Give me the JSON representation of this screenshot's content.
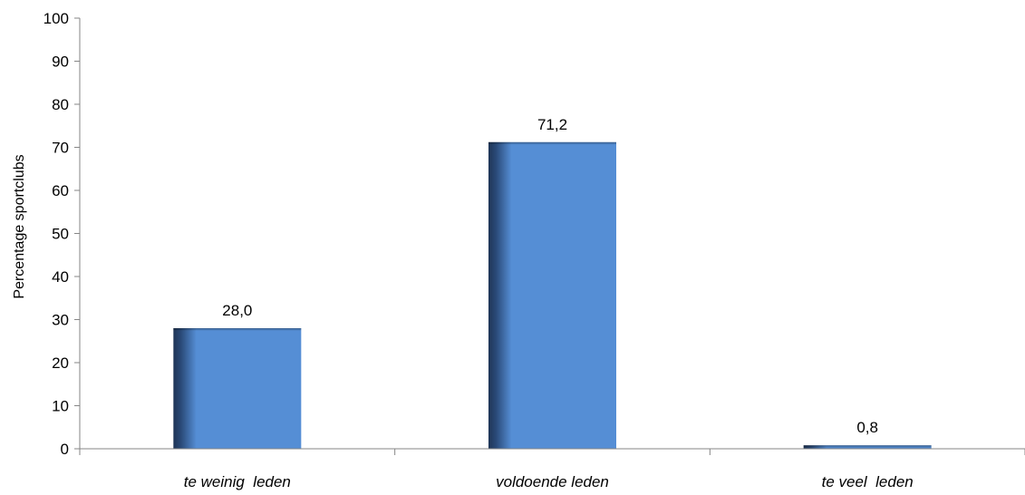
{
  "chart_data": {
    "type": "bar",
    "title": "",
    "xlabel": "",
    "ylabel": "Percentage sportclubs",
    "categories": [
      "te weinig  leden",
      "voldoende leden",
      "te veel  leden"
    ],
    "values": [
      28.0,
      71.2,
      0.8
    ],
    "value_labels": [
      "28,0",
      "71,2",
      "0,8"
    ],
    "ylim": [
      0,
      100
    ],
    "yticks": [
      "0",
      "10",
      "20",
      "30",
      "40",
      "50",
      "60",
      "70",
      "80",
      "90",
      "100"
    ],
    "grid": false,
    "legend": "none",
    "bar_color": "#558ED5",
    "bar_shadow_color": "#2A4A78"
  }
}
